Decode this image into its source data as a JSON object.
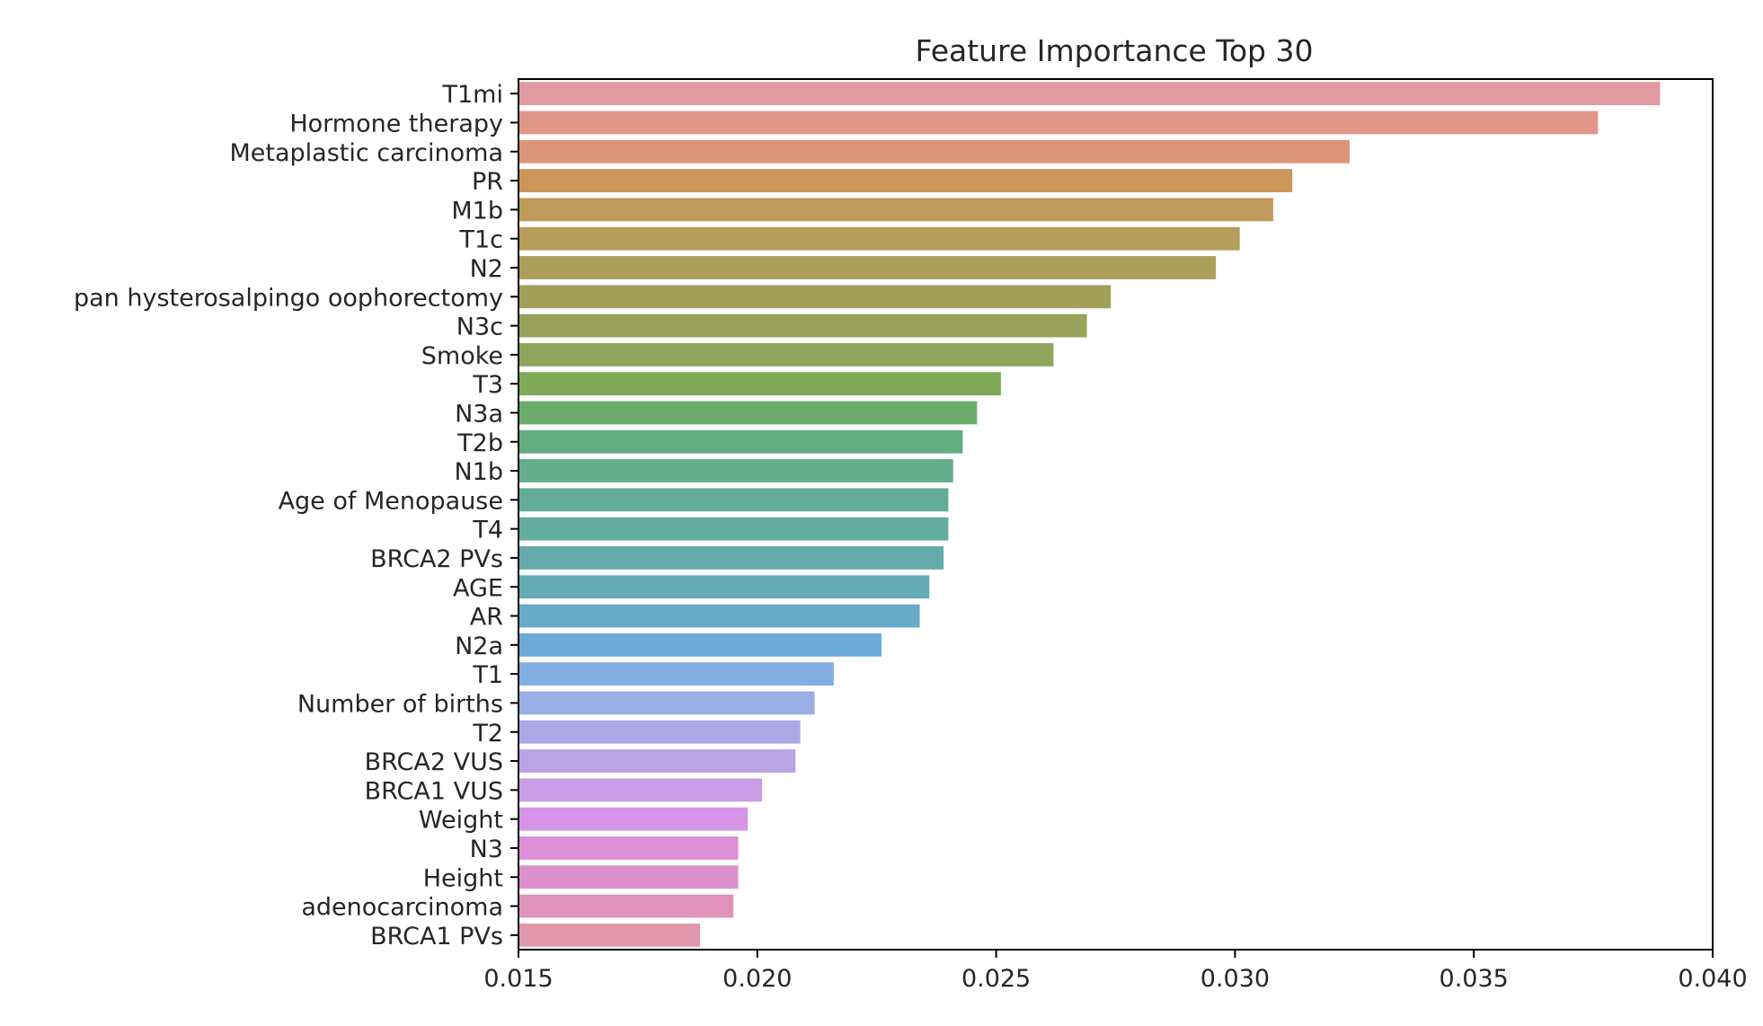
{
  "chart_data": {
    "type": "bar",
    "orientation": "horizontal",
    "title": "Feature Importance Top 30",
    "xlabel": "",
    "ylabel": "",
    "xlim": [
      0.015,
      0.04
    ],
    "x_ticks": [
      0.015,
      0.02,
      0.025,
      0.03,
      0.035,
      0.04
    ],
    "x_tick_labels": [
      "0.015",
      "0.020",
      "0.025",
      "0.030",
      "0.035",
      "0.040"
    ],
    "grid": false,
    "categories": [
      "T1mi",
      "Hormone therapy",
      "Metaplastic carcinoma",
      "PR",
      "M1b",
      "T1c",
      "N2",
      "pan hysterosalpingo oophorectomy",
      "N3c",
      "Smoke",
      "T3",
      "N3a",
      "T2b",
      "N1b",
      "Age of Menopause",
      "T4",
      "BRCA2 PVs",
      "AGE",
      "AR",
      "N2a",
      "T1",
      "Number of births",
      "T2",
      "BRCA2 VUS",
      "BRCA1 VUS",
      "Weight",
      "N3",
      "Height",
      "adenocarcinoma",
      "BRCA1 PVs"
    ],
    "values": [
      0.0389,
      0.0376,
      0.0324,
      0.0312,
      0.0308,
      0.0301,
      0.0296,
      0.0274,
      0.0269,
      0.0262,
      0.0251,
      0.0246,
      0.0243,
      0.0241,
      0.024,
      0.024,
      0.0239,
      0.0236,
      0.0234,
      0.0226,
      0.0216,
      0.0212,
      0.0209,
      0.0208,
      0.0201,
      0.0198,
      0.0196,
      0.0196,
      0.0195,
      0.0188
    ],
    "colors": [
      "#e19aa1",
      "#e0978a",
      "#db967a",
      "#cb9658",
      "#c09a5a",
      "#b39e5a",
      "#aba05b",
      "#a2a05b",
      "#98a25b",
      "#8ea659",
      "#7eaa58",
      "#6aad6b",
      "#63ad80",
      "#63ad8d",
      "#63ac97",
      "#64aca0",
      "#64aba9",
      "#65abb4",
      "#69abc8",
      "#6da9d8",
      "#83aee2",
      "#9aaee5",
      "#aca8e6",
      "#bba4e5",
      "#c99ee6",
      "#d693e7",
      "#dc8fd6",
      "#dc90cb",
      "#df93bb",
      "#e097ad"
    ]
  }
}
